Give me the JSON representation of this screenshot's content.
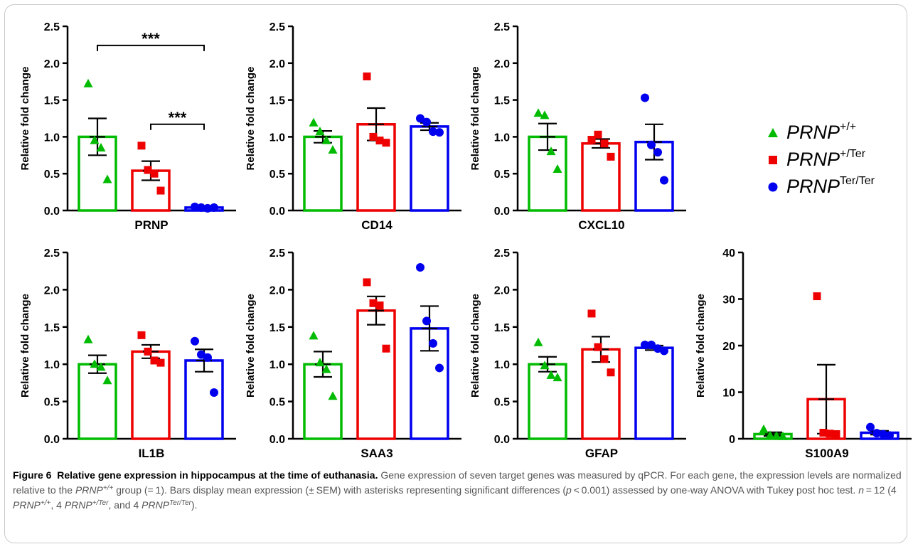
{
  "colors": {
    "wt": "#00bb00",
    "het": "#ee0000",
    "hom": "#0000ee"
  },
  "y_axis_label": "Relative fold change",
  "legend": [
    {
      "group": "wt",
      "marker": "triangle",
      "base": "PRNP",
      "sup": "+/+"
    },
    {
      "group": "het",
      "marker": "square",
      "base": "PRNP",
      "sup": "+/Ter"
    },
    {
      "group": "hom",
      "marker": "circle",
      "base": "PRNP",
      "sup": "Ter/Ter"
    }
  ],
  "caption": {
    "label": "Figure 6",
    "title": "Relative gene expression in hippocampus at the time of euthanasia.",
    "s1": " Gene expression of seven target genes was measured by qPCR. For each gene, the expression levels are normalized relative to the ",
    "gene": "PRNP",
    "wt_sup": "+/+",
    "s2": " group (= 1). Bars display mean expression (± SEM) with asterisks representing significant differences (",
    "p": "p",
    "s3": " < 0.001) assessed by one-way ANOVA with Tukey post hoc test. ",
    "n": "n",
    "s4": " = 12 (4 ",
    "s5": ", 4 ",
    "het_sup": "+/Ter",
    "s6": ", and 4 ",
    "hom_sup": "Ter/Ter",
    "s7": ")."
  },
  "chart_data": [
    {
      "type": "bar",
      "title": "PRNP",
      "ylabel": "Relative fold change",
      "ylim": [
        0,
        2.5
      ],
      "yticks": [
        "0.0",
        "0.5",
        "1.0",
        "1.5",
        "2.0",
        "2.5"
      ],
      "means": [
        1.0,
        0.54,
        0.04
      ],
      "sem": [
        0.25,
        0.13,
        0.01
      ],
      "points": [
        [
          1.72,
          0.95,
          0.85,
          0.42
        ],
        [
          0.88,
          0.55,
          0.5,
          0.27
        ],
        [
          0.05,
          0.04,
          0.03,
          0.04
        ]
      ],
      "brackets": [
        {
          "from": 0,
          "to": 2,
          "y": 2.24,
          "label": "***"
        },
        {
          "from": 1,
          "to": 2,
          "y": 1.17,
          "label": "***"
        }
      ]
    },
    {
      "type": "bar",
      "title": "CD14",
      "ylabel": "Relative fold change",
      "ylim": [
        0,
        2.5
      ],
      "yticks": [
        "0.0",
        "0.5",
        "1.0",
        "1.5",
        "2.0",
        "2.5"
      ],
      "means": [
        1.0,
        1.17,
        1.14
      ],
      "sem": [
        0.08,
        0.22,
        0.05
      ],
      "points": [
        [
          1.19,
          1.07,
          0.95,
          0.82
        ],
        [
          1.82,
          1.0,
          0.95,
          0.92
        ],
        [
          1.25,
          1.2,
          1.07,
          1.06
        ]
      ],
      "brackets": []
    },
    {
      "type": "bar",
      "title": "CXCL10",
      "ylabel": "Relative fold change",
      "ylim": [
        0,
        2.5
      ],
      "yticks": [
        "0.0",
        "0.5",
        "1.0",
        "1.5",
        "2.0",
        "2.5"
      ],
      "means": [
        1.0,
        0.91,
        0.93
      ],
      "sem": [
        0.18,
        0.06,
        0.24
      ],
      "points": [
        [
          1.32,
          1.29,
          0.8,
          0.56
        ],
        [
          0.96,
          1.03,
          0.91,
          0.73
        ],
        [
          1.53,
          0.89,
          0.79,
          0.41
        ]
      ],
      "brackets": []
    },
    {
      "type": "bar",
      "title": "IL1B",
      "ylabel": "Relative fold change",
      "ylim": [
        0,
        2.5
      ],
      "yticks": [
        "0.0",
        "0.5",
        "1.0",
        "1.5",
        "2.0",
        "2.5"
      ],
      "means": [
        1.0,
        1.17,
        1.05
      ],
      "sem": [
        0.12,
        0.09,
        0.15
      ],
      "points": [
        [
          1.33,
          1.0,
          0.96,
          0.78
        ],
        [
          1.39,
          1.17,
          1.05,
          1.02
        ],
        [
          1.31,
          1.13,
          1.09,
          0.62
        ]
      ],
      "brackets": []
    },
    {
      "type": "bar",
      "title": "SAA3",
      "ylabel": "Relative fold change",
      "ylim": [
        0,
        2.5
      ],
      "yticks": [
        "0.0",
        "0.5",
        "1.0",
        "1.5",
        "2.0",
        "2.5"
      ],
      "means": [
        1.0,
        1.72,
        1.48
      ],
      "sem": [
        0.17,
        0.19,
        0.3
      ],
      "points": [
        [
          1.38,
          1.02,
          0.93,
          0.57
        ],
        [
          2.1,
          1.82,
          1.79,
          1.21
        ],
        [
          2.3,
          1.58,
          1.28,
          0.95
        ]
      ],
      "brackets": []
    },
    {
      "type": "bar",
      "title": "GFAP",
      "ylabel": "Relative fold change",
      "ylim": [
        0,
        2.5
      ],
      "yticks": [
        "0.0",
        "0.5",
        "1.0",
        "1.5",
        "2.0",
        "2.5"
      ],
      "means": [
        1.0,
        1.2,
        1.22
      ],
      "sem": [
        0.1,
        0.17,
        0.03
      ],
      "points": [
        [
          1.29,
          0.98,
          0.85,
          0.82
        ],
        [
          1.68,
          1.23,
          1.07,
          0.89
        ],
        [
          1.26,
          1.26,
          1.21,
          1.18
        ]
      ],
      "brackets": []
    },
    {
      "type": "bar",
      "title": "S100A9",
      "ylabel": "Relative fold change",
      "ylim": [
        0,
        40
      ],
      "yticks": [
        "0",
        "10",
        "20",
        "30",
        "40"
      ],
      "means": [
        1.0,
        8.5,
        1.3
      ],
      "sem": [
        0.4,
        7.4,
        0.4
      ],
      "points": [
        [
          2.0,
          0.7,
          0.6,
          0.5
        ],
        [
          30.6,
          1.3,
          1.1,
          1.0
        ],
        [
          2.5,
          1.2,
          1.0,
          0.7
        ]
      ],
      "brackets": []
    }
  ]
}
